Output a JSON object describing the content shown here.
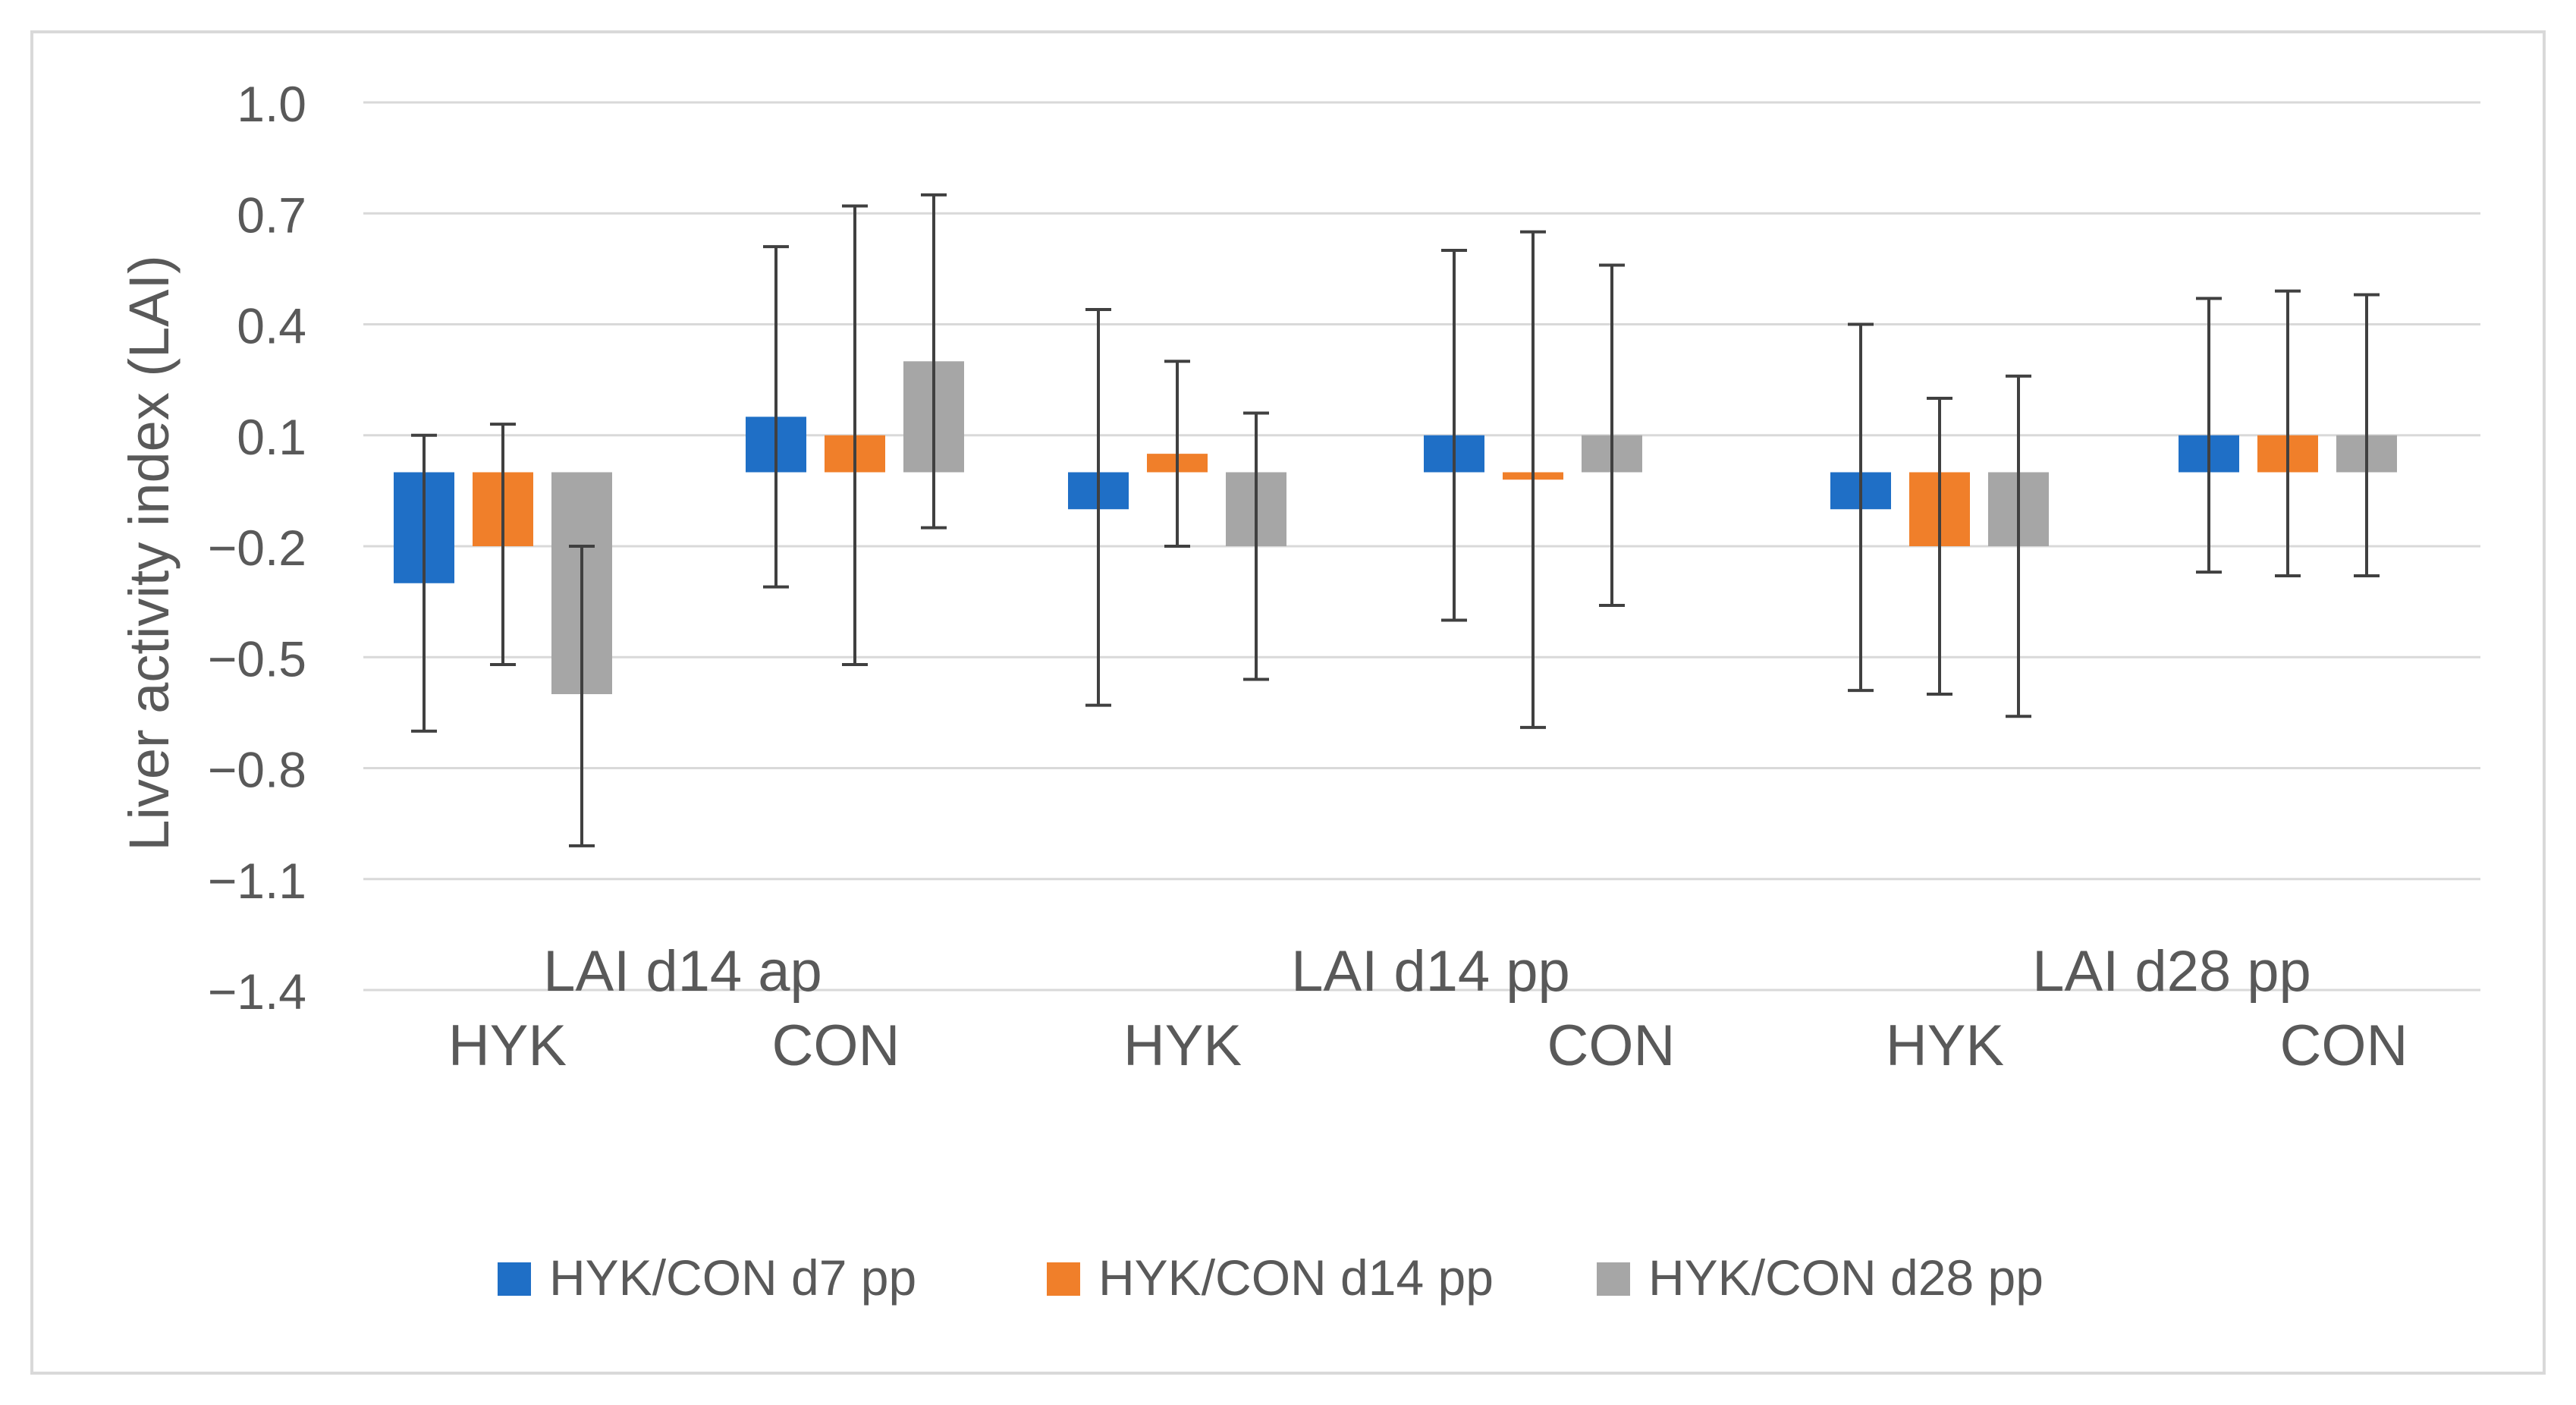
{
  "chart_data": {
    "type": "bar",
    "title": "",
    "ylabel": "Liver activity index (LAI)",
    "xlabel": "",
    "ylim": [
      -1.4,
      1.0
    ],
    "yticks": [
      1.0,
      0.7,
      0.4,
      0.1,
      -0.2,
      -0.5,
      -0.8,
      -1.1,
      -1.4
    ],
    "ytick_labels": [
      "1.0",
      "0.7",
      "0.4",
      "0.1",
      "−0.2",
      "−0.5",
      "−0.8",
      "−1.1",
      "−1.4"
    ],
    "grid": true,
    "legend_position": "bottom",
    "baseline": 0.0,
    "panels": [
      "LAI d14 ap",
      "LAI d14 pp",
      "LAI d28 pp"
    ],
    "categories": [
      "HYK",
      "CON",
      "HYK",
      "CON",
      "HYK",
      "CON"
    ],
    "series": [
      {
        "name": "HYK/CON d7 pp",
        "color": "#1f6fc6",
        "values": [
          -0.3,
          0.15,
          -0.1,
          0.1,
          -0.1,
          0.1
        ],
        "error_low": [
          -0.7,
          -0.31,
          -0.63,
          -0.4,
          -0.59,
          -0.27
        ],
        "error_high": [
          0.1,
          0.61,
          0.44,
          0.6,
          0.4,
          0.47
        ]
      },
      {
        "name": "HYK/CON d14 pp",
        "color": "#f07f2a",
        "values": [
          -0.2,
          0.1,
          0.05,
          -0.02,
          -0.2,
          0.1
        ],
        "error_low": [
          -0.52,
          -0.52,
          -0.2,
          -0.69,
          -0.6,
          -0.28
        ],
        "error_high": [
          0.13,
          0.72,
          0.3,
          0.65,
          0.2,
          0.49
        ]
      },
      {
        "name": "HYK/CON d28 pp",
        "color": "#a6a6a6",
        "values": [
          -0.6,
          0.3,
          -0.2,
          0.1,
          -0.2,
          0.1
        ],
        "error_low": [
          -1.01,
          -0.15,
          -0.56,
          -0.36,
          -0.66,
          -0.28
        ],
        "error_high": [
          -0.2,
          0.75,
          0.16,
          0.56,
          0.26,
          0.48
        ]
      }
    ]
  }
}
